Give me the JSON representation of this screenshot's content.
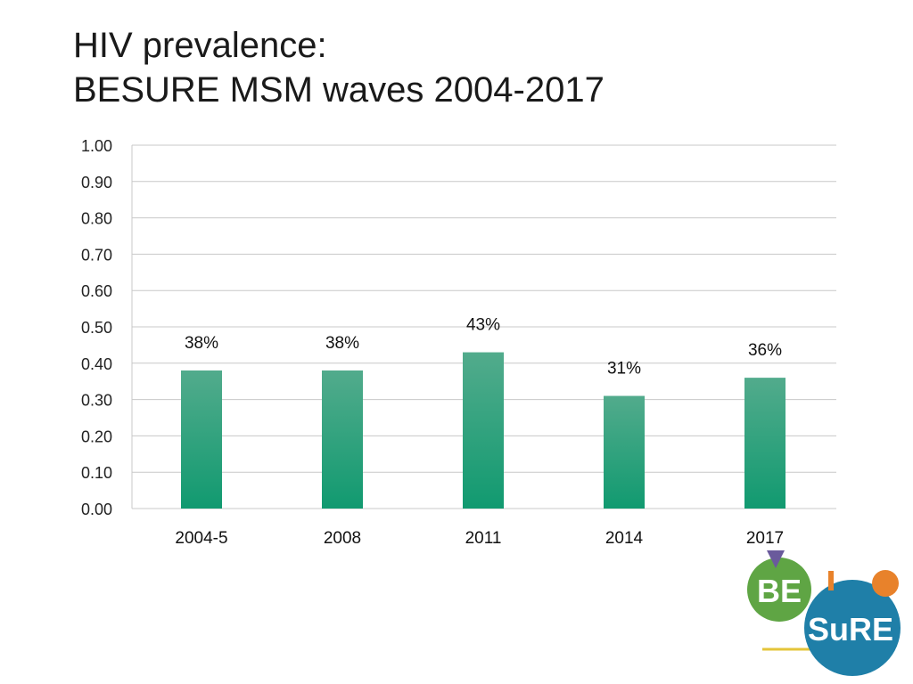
{
  "slide": {
    "title_line1": "HIV prevalence:",
    "title_line2": "BESURE MSM waves 2004-2017"
  },
  "chart_data": {
    "type": "bar",
    "categories": [
      "2004-5",
      "2008",
      "2011",
      "2014",
      "2017"
    ],
    "values": [
      0.38,
      0.38,
      0.43,
      0.31,
      0.36
    ],
    "data_labels": [
      "38%",
      "38%",
      "43%",
      "31%",
      "36%"
    ],
    "ylim": [
      0,
      1
    ],
    "yticks": [
      "0.00",
      "0.10",
      "0.20",
      "0.30",
      "0.40",
      "0.50",
      "0.60",
      "0.70",
      "0.80",
      "0.90",
      "1.00"
    ],
    "grid": true,
    "bar_color_top": "#52ab8c",
    "bar_color_bottom": "#119a70"
  },
  "logo": {
    "text_be": "BE",
    "text_sure": "SuRE",
    "colors": {
      "green": "#5fa544",
      "blue": "#1f7fa8",
      "orange": "#e8822b",
      "purple": "#6a5a9c",
      "yellow": "#e4c53a"
    }
  }
}
